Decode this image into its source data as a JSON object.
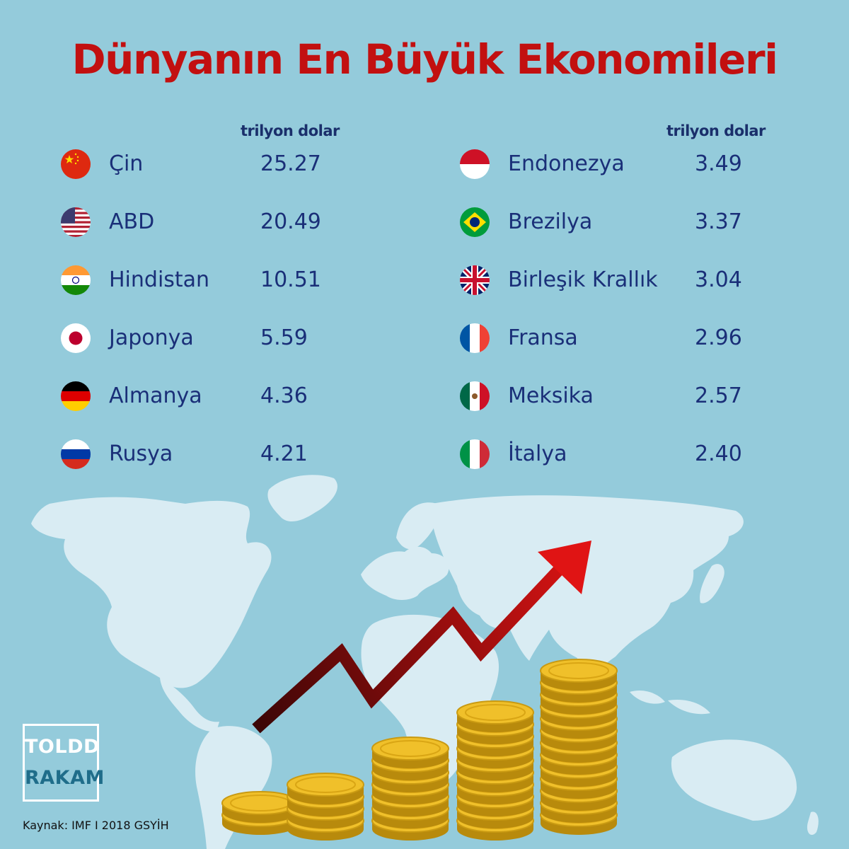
{
  "chart_data": {
    "type": "table",
    "title": "Dünyanın En Büyük Ekonomileri",
    "unit_label": "trilyon dolar",
    "source": "Kaynak: IMF I 2018 GSYİH",
    "columns": [
      {
        "unit_label": "trilyon dolar",
        "rows": [
          {
            "country": "Çin",
            "value": "25.27",
            "flag": "china-flag-icon"
          },
          {
            "country": "ABD",
            "value": "20.49",
            "flag": "usa-flag-icon"
          },
          {
            "country": "Hindistan",
            "value": "10.51",
            "flag": "india-flag-icon"
          },
          {
            "country": "Japonya",
            "value": "5.59",
            "flag": "japan-flag-icon"
          },
          {
            "country": "Almanya",
            "value": "4.36",
            "flag": "germany-flag-icon"
          },
          {
            "country": "Rusya",
            "value": "4.21",
            "flag": "russia-flag-icon"
          }
        ]
      },
      {
        "unit_label": "trilyon dolar",
        "rows": [
          {
            "country": "Endonezya",
            "value": "3.49",
            "flag": "indonesia-flag-icon"
          },
          {
            "country": "Brezilya",
            "value": "3.37",
            "flag": "brazil-flag-icon"
          },
          {
            "country": "Birleşik Krallık",
            "value": "3.04",
            "flag": "uk-flag-icon"
          },
          {
            "country": "Fransa",
            "value": "2.96",
            "flag": "france-flag-icon"
          },
          {
            "country": "Meksika",
            "value": "2.57",
            "flag": "mexico-flag-icon"
          },
          {
            "country": "İtalya",
            "value": "2.40",
            "flag": "italy-flag-icon"
          }
        ]
      }
    ]
  },
  "brand": {
    "line1": "TOLDD",
    "line2": "RAKAM"
  },
  "colors": {
    "background": "#94cbdb",
    "map": "#d9ecf3",
    "title": "#c21010",
    "text": "#1a2f78",
    "arrow": "#d01414",
    "coin": "#e8b41e"
  },
  "decorations": [
    "world-map",
    "growth-arrow-icon",
    "coin-stacks"
  ]
}
